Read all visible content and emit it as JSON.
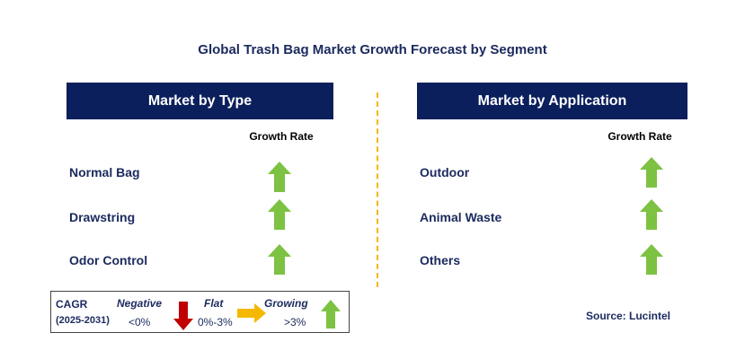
{
  "title": "Global Trash Bag Market Growth Forecast by Segment",
  "left_panel": {
    "header": "Market by Type",
    "growth_label": "Growth Rate",
    "items": [
      {
        "label": "Normal Bag",
        "trend": "growing"
      },
      {
        "label": "Drawstring",
        "trend": "growing"
      },
      {
        "label": "Odor Control",
        "trend": "growing"
      }
    ]
  },
  "right_panel": {
    "header": "Market by Application",
    "growth_label": "Growth Rate",
    "items": [
      {
        "label": "Outdoor",
        "trend": "growing"
      },
      {
        "label": "Animal Waste",
        "trend": "growing"
      },
      {
        "label": "Others",
        "trend": "growing"
      }
    ]
  },
  "legend": {
    "cagr_label": "CAGR",
    "period": "(2025-2031)",
    "negative_label": "Negative",
    "negative_range": "<0%",
    "flat_label": "Flat",
    "flat_range": "0%-3%",
    "growing_label": "Growing",
    "growing_range": ">3%"
  },
  "source": "Source: Lucintel",
  "colors": {
    "header_bg": "#0b1f5c",
    "text_navy": "#1b2a5e",
    "arrow_green": "#7dc242",
    "arrow_red": "#c00000",
    "arrow_yellow": "#f5b800",
    "divider": "#f2b705"
  },
  "icons": {
    "growing": "green-up-arrow-icon",
    "negative": "red-down-arrow-icon",
    "flat": "yellow-right-arrow-icon"
  }
}
